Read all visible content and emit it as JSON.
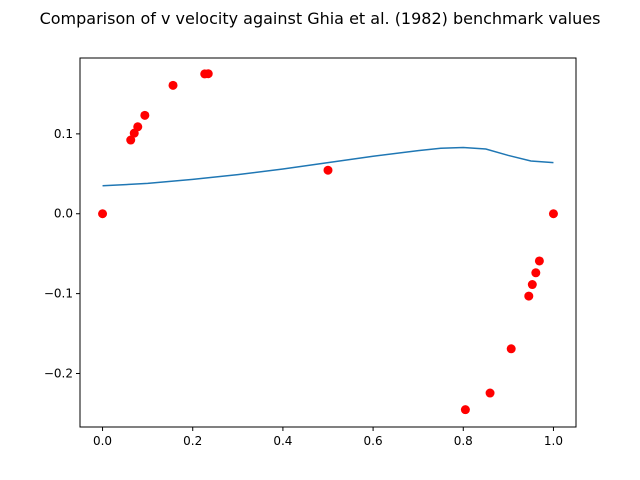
{
  "chart_data": {
    "type": "scatter",
    "title": "Comparison of v velocity against Ghia et al. (1982) benchmark values",
    "xlabel": "",
    "ylabel": "",
    "xlim": [
      -0.05,
      1.05
    ],
    "ylim": [
      -0.267,
      0.195
    ],
    "xticks": [
      0.0,
      0.2,
      0.4,
      0.6,
      0.8,
      1.0
    ],
    "xtick_labels": [
      "0.0",
      "0.2",
      "0.4",
      "0.6",
      "0.8",
      "1.0"
    ],
    "yticks": [
      -0.2,
      -0.1,
      0.0,
      0.1
    ],
    "ytick_labels": [
      "−0.2",
      "−0.1",
      "0.0",
      "0.1"
    ],
    "grid": false,
    "legend": "none",
    "series": [
      {
        "kind": "line",
        "color": "#1f77b4",
        "x": [
          0.0,
          0.1,
          0.2,
          0.3,
          0.4,
          0.5,
          0.6,
          0.7,
          0.75,
          0.8,
          0.85,
          0.9,
          0.95,
          1.0
        ],
        "y": [
          0.035,
          0.038,
          0.043,
          0.049,
          0.056,
          0.064,
          0.072,
          0.079,
          0.082,
          0.083,
          0.081,
          0.073,
          0.066,
          0.064
        ]
      },
      {
        "kind": "scatter",
        "color": "#ff0000",
        "x": [
          0.0,
          0.0625,
          0.0703,
          0.0781,
          0.0938,
          0.1563,
          0.2266,
          0.2344,
          0.5,
          0.8047,
          0.8594,
          0.9063,
          0.9453,
          0.9531,
          0.9609,
          0.9688,
          1.0
        ],
        "y": [
          0.0,
          0.0923,
          0.1009,
          0.1089,
          0.1232,
          0.1608,
          0.1751,
          0.1753,
          0.0545,
          -0.2453,
          -0.2245,
          -0.1691,
          -0.1031,
          -0.0886,
          -0.0739,
          -0.0591,
          0.0
        ]
      }
    ]
  }
}
